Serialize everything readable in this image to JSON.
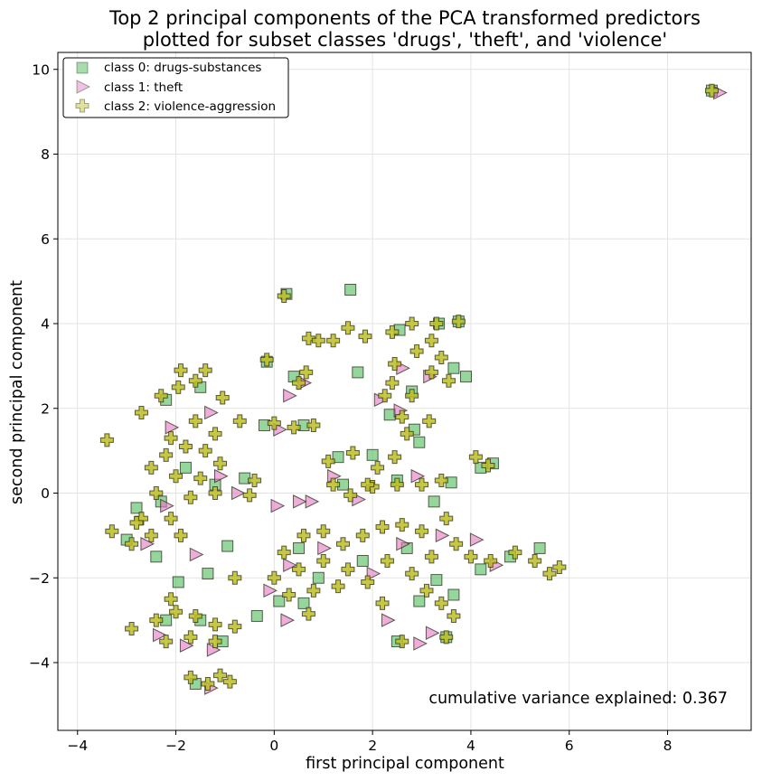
{
  "chart_data": {
    "type": "scatter",
    "title": [
      "Top 2 principal components of the PCA transformed predictors",
      "plotted for subset classes 'drugs', 'theft', and 'violence'"
    ],
    "xlabel": "first principal component",
    "ylabel": "second principal component",
    "xlim": [
      -4.4,
      9.7
    ],
    "ylim": [
      -5.6,
      10.4
    ],
    "xticks": [
      -4,
      -2,
      0,
      2,
      4,
      6,
      8
    ],
    "yticks": [
      -4,
      -2,
      0,
      2,
      4,
      6,
      8,
      10
    ],
    "grid": true,
    "legend_position": "top-left",
    "annotation": "cumulative variance explained: 0.367",
    "series": [
      {
        "name": "class 0: drugs-substances",
        "marker": "square",
        "color": "#3cb44b",
        "points": [
          [
            8.9,
            9.5
          ],
          [
            0.25,
            4.7
          ],
          [
            1.55,
            4.8
          ],
          [
            3.75,
            4.05
          ],
          [
            3.35,
            4.0
          ],
          [
            2.55,
            3.85
          ],
          [
            3.9,
            2.75
          ],
          [
            3.65,
            2.95
          ],
          [
            1.7,
            2.85
          ],
          [
            0.4,
            2.75
          ],
          [
            -0.15,
            3.1
          ],
          [
            2.8,
            2.4
          ],
          [
            2.35,
            1.85
          ],
          [
            2.85,
            1.5
          ],
          [
            -2.2,
            2.2
          ],
          [
            -1.5,
            2.5
          ],
          [
            -0.2,
            1.6
          ],
          [
            0.6,
            1.6
          ],
          [
            1.3,
            0.85
          ],
          [
            2.0,
            0.9
          ],
          [
            2.95,
            1.2
          ],
          [
            4.2,
            0.6
          ],
          [
            4.45,
            0.7
          ],
          [
            -1.8,
            0.6
          ],
          [
            -2.3,
            -0.2
          ],
          [
            -1.2,
            0.2
          ],
          [
            -0.6,
            0.35
          ],
          [
            1.4,
            0.2
          ],
          [
            2.5,
            0.3
          ],
          [
            3.25,
            -0.2
          ],
          [
            3.6,
            0.25
          ],
          [
            -2.8,
            -0.35
          ],
          [
            -3.0,
            -1.1
          ],
          [
            -2.4,
            -1.5
          ],
          [
            -0.95,
            -1.25
          ],
          [
            -1.95,
            -2.1
          ],
          [
            -1.35,
            -1.9
          ],
          [
            0.5,
            -1.3
          ],
          [
            0.9,
            -2.0
          ],
          [
            1.8,
            -1.6
          ],
          [
            2.7,
            -1.3
          ],
          [
            3.3,
            -2.05
          ],
          [
            4.2,
            -1.8
          ],
          [
            4.8,
            -1.5
          ],
          [
            5.4,
            -1.3
          ],
          [
            3.65,
            -2.4
          ],
          [
            2.95,
            -2.55
          ],
          [
            -0.35,
            -2.9
          ],
          [
            0.1,
            -2.55
          ],
          [
            0.6,
            -2.6
          ],
          [
            3.5,
            -3.4
          ],
          [
            2.5,
            -3.5
          ],
          [
            -2.2,
            -3.0
          ],
          [
            -1.5,
            -3.0
          ],
          [
            -1.05,
            -3.5
          ],
          [
            -1.6,
            -4.5
          ]
        ]
      },
      {
        "name": "class 1: theft",
        "marker": "triangle-right",
        "color": "#e377c2",
        "points": [
          [
            9.05,
            9.45
          ],
          [
            0.3,
            2.3
          ],
          [
            0.6,
            2.6
          ],
          [
            2.6,
            2.95
          ],
          [
            3.15,
            2.75
          ],
          [
            2.15,
            2.2
          ],
          [
            2.55,
            1.95
          ],
          [
            -2.1,
            1.55
          ],
          [
            -1.3,
            1.9
          ],
          [
            0.1,
            1.5
          ],
          [
            1.2,
            0.4
          ],
          [
            1.7,
            -0.15
          ],
          [
            2.9,
            0.4
          ],
          [
            0.75,
            -0.2
          ],
          [
            0.5,
            -0.2
          ],
          [
            0.05,
            -0.3
          ],
          [
            -1.1,
            0.4
          ],
          [
            -0.75,
            0.0
          ],
          [
            -2.2,
            -0.3
          ],
          [
            -2.6,
            -1.2
          ],
          [
            -1.6,
            -1.45
          ],
          [
            0.3,
            -1.7
          ],
          [
            1.0,
            -1.3
          ],
          [
            2.0,
            -1.9
          ],
          [
            2.6,
            -1.2
          ],
          [
            3.4,
            -1.0
          ],
          [
            4.1,
            -1.1
          ],
          [
            4.5,
            -1.7
          ],
          [
            0.25,
            -3.0
          ],
          [
            -0.1,
            -2.3
          ],
          [
            2.3,
            -3.0
          ],
          [
            2.95,
            -3.55
          ],
          [
            3.2,
            -3.3
          ],
          [
            -2.35,
            -3.35
          ],
          [
            -1.8,
            -3.6
          ],
          [
            -1.25,
            -3.7
          ],
          [
            -1.3,
            -4.6
          ]
        ]
      },
      {
        "name": "class 2: violence-aggression",
        "marker": "plus",
        "color": "#bcbd22",
        "points": [
          [
            8.9,
            9.5
          ],
          [
            0.2,
            4.65
          ],
          [
            1.2,
            3.6
          ],
          [
            0.7,
            3.65
          ],
          [
            1.5,
            3.9
          ],
          [
            1.85,
            3.7
          ],
          [
            2.4,
            3.8
          ],
          [
            2.8,
            4.0
          ],
          [
            3.3,
            4.0
          ],
          [
            3.75,
            4.05
          ],
          [
            3.2,
            3.6
          ],
          [
            3.4,
            3.2
          ],
          [
            2.9,
            3.35
          ],
          [
            2.45,
            3.05
          ],
          [
            3.2,
            2.85
          ],
          [
            3.55,
            2.65
          ],
          [
            2.4,
            2.6
          ],
          [
            2.25,
            2.3
          ],
          [
            2.8,
            2.3
          ],
          [
            2.6,
            1.8
          ],
          [
            3.15,
            1.7
          ],
          [
            2.7,
            1.4
          ],
          [
            0.5,
            2.6
          ],
          [
            0.65,
            2.85
          ],
          [
            -0.15,
            3.15
          ],
          [
            0.0,
            1.65
          ],
          [
            0.4,
            1.55
          ],
          [
            0.8,
            1.6
          ],
          [
            -2.7,
            1.9
          ],
          [
            -2.3,
            2.3
          ],
          [
            -1.95,
            2.5
          ],
          [
            -1.6,
            2.65
          ],
          [
            -1.4,
            2.9
          ],
          [
            -1.05,
            2.25
          ],
          [
            -1.6,
            1.7
          ],
          [
            -2.1,
            1.3
          ],
          [
            -1.2,
            1.4
          ],
          [
            -0.7,
            1.7
          ],
          [
            -1.9,
            2.9
          ],
          [
            -2.5,
            0.6
          ],
          [
            -2.2,
            0.9
          ],
          [
            -1.8,
            1.1
          ],
          [
            -1.4,
            1.0
          ],
          [
            -1.1,
            0.7
          ],
          [
            -1.5,
            0.35
          ],
          [
            -2.0,
            0.4
          ],
          [
            -2.4,
            0.0
          ],
          [
            -1.7,
            -0.1
          ],
          [
            -1.2,
            0.0
          ],
          [
            -2.1,
            -0.6
          ],
          [
            -2.7,
            -0.6
          ],
          [
            -3.3,
            -0.9
          ],
          [
            -2.9,
            -1.2
          ],
          [
            -2.5,
            -1.0
          ],
          [
            -1.9,
            -1.0
          ],
          [
            -3.4,
            1.25
          ],
          [
            -0.4,
            0.3
          ],
          [
            -0.5,
            -0.05
          ],
          [
            1.1,
            0.75
          ],
          [
            1.6,
            0.95
          ],
          [
            2.1,
            0.6
          ],
          [
            2.45,
            0.85
          ],
          [
            1.2,
            0.2
          ],
          [
            1.55,
            -0.05
          ],
          [
            2.0,
            0.15
          ],
          [
            2.5,
            0.2
          ],
          [
            3.0,
            0.2
          ],
          [
            3.4,
            0.3
          ],
          [
            4.1,
            0.85
          ],
          [
            4.35,
            0.65
          ],
          [
            0.6,
            -1.0
          ],
          [
            1.0,
            -0.9
          ],
          [
            1.4,
            -1.2
          ],
          [
            1.8,
            -1.0
          ],
          [
            2.2,
            -0.8
          ],
          [
            2.6,
            -0.75
          ],
          [
            3.0,
            -0.9
          ],
          [
            3.5,
            -0.6
          ],
          [
            0.2,
            -1.4
          ],
          [
            0.5,
            -1.8
          ],
          [
            1.0,
            -1.6
          ],
          [
            1.5,
            -1.8
          ],
          [
            1.9,
            -2.1
          ],
          [
            2.3,
            -1.6
          ],
          [
            2.8,
            -1.9
          ],
          [
            3.2,
            -1.5
          ],
          [
            3.7,
            -1.2
          ],
          [
            4.0,
            -1.5
          ],
          [
            4.4,
            -1.6
          ],
          [
            4.9,
            -1.4
          ],
          [
            5.3,
            -1.6
          ],
          [
            5.8,
            -1.75
          ],
          [
            5.6,
            -1.9
          ],
          [
            0.0,
            -2.0
          ],
          [
            0.3,
            -2.4
          ],
          [
            0.8,
            -2.3
          ],
          [
            1.3,
            -2.2
          ],
          [
            0.7,
            -2.85
          ],
          [
            3.1,
            -2.3
          ],
          [
            3.4,
            -2.6
          ],
          [
            3.65,
            -2.9
          ],
          [
            2.2,
            -2.6
          ],
          [
            2.6,
            -3.5
          ],
          [
            3.5,
            -3.4
          ],
          [
            -2.9,
            -3.2
          ],
          [
            -2.4,
            -3.0
          ],
          [
            -2.0,
            -2.8
          ],
          [
            -1.6,
            -2.9
          ],
          [
            -1.2,
            -3.1
          ],
          [
            -0.8,
            -3.15
          ],
          [
            -2.2,
            -3.5
          ],
          [
            -1.7,
            -3.4
          ],
          [
            -1.2,
            -3.5
          ],
          [
            -1.7,
            -4.35
          ],
          [
            -1.35,
            -4.5
          ],
          [
            -1.1,
            -4.3
          ],
          [
            -0.9,
            -4.45
          ],
          [
            -2.1,
            -2.5
          ],
          [
            -0.8,
            -2.0
          ],
          [
            0.9,
            3.6
          ],
          [
            1.9,
            0.2
          ],
          [
            -2.8,
            -0.7
          ]
        ]
      }
    ]
  }
}
